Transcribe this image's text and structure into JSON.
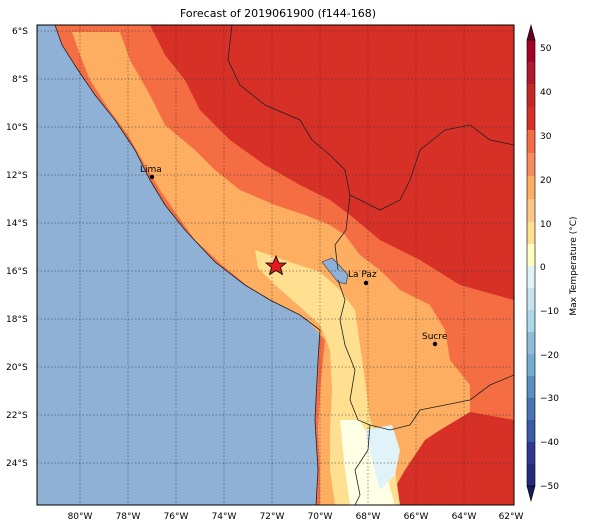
{
  "title": "Forecast of 2019061900 (f144-168)",
  "lat_labels": [
    "6°S",
    "8°S",
    "10°S",
    "12°S",
    "14°S",
    "16°S",
    "18°S",
    "20°S",
    "22°S",
    "24°S"
  ],
  "lon_labels": [
    "80°W",
    "78°W",
    "76°W",
    "74°W",
    "72°W",
    "70°W",
    "68°W",
    "66°W",
    "64°W",
    "62°W"
  ],
  "cities": [
    {
      "name": "Lima"
    },
    {
      "name": "La Paz"
    },
    {
      "name": "Sucre"
    }
  ],
  "colorbar": {
    "label": "Max Temperature (°C)",
    "ticks": [
      "50",
      "40",
      "30",
      "20",
      "10",
      "0",
      "−10",
      "−20",
      "−30",
      "−40",
      "−50"
    ]
  },
  "colors": {
    "ocean": "#8fb1d6",
    "hot": "#d73027",
    "warm": "#f46d43",
    "mild": "#fdae61",
    "cool": "#fee090",
    "pale": "#ffffe5",
    "cold": "#e0f3f8"
  }
}
